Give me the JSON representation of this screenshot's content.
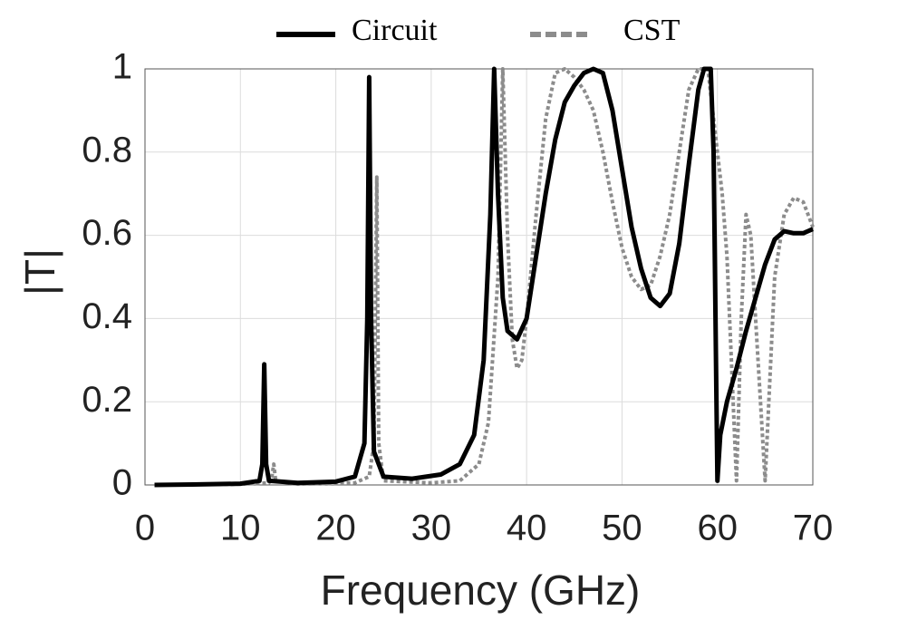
{
  "chart_data": {
    "type": "line",
    "xlabel": "Frequency (GHz)",
    "ylabel": "|T|",
    "xlim": [
      0,
      70
    ],
    "xticks": [
      0,
      10,
      20,
      30,
      40,
      50,
      60,
      70
    ],
    "ylim": [
      0,
      1
    ],
    "yticks": [
      0,
      0.2,
      0.4,
      0.6,
      0.8,
      1
    ],
    "grid": true,
    "legend": "top",
    "series": [
      {
        "name": "Circuit",
        "color": "#000000",
        "dash": "solid",
        "x": [
          1,
          5,
          10,
          12,
          12.3,
          12.5,
          12.7,
          13,
          16,
          20,
          22,
          23,
          23.3,
          23.5,
          23.7,
          24,
          25,
          28,
          31,
          33,
          34.5,
          35.5,
          36.2,
          36.6,
          37,
          37.5,
          38,
          39,
          40,
          41,
          42,
          43,
          44,
          45,
          46,
          47,
          48,
          49,
          50,
          51,
          52,
          53,
          54,
          55,
          56,
          57,
          58,
          58.6,
          59.3,
          59.6,
          59.9,
          60,
          60.3,
          61,
          62,
          63,
          64,
          65,
          66,
          67,
          68,
          69,
          70
        ],
        "values": [
          0,
          0.001,
          0.003,
          0.01,
          0.05,
          0.29,
          0.05,
          0.01,
          0.005,
          0.008,
          0.02,
          0.1,
          0.4,
          0.98,
          0.4,
          0.08,
          0.02,
          0.015,
          0.025,
          0.05,
          0.12,
          0.3,
          0.65,
          1.0,
          0.7,
          0.45,
          0.37,
          0.35,
          0.4,
          0.55,
          0.7,
          0.83,
          0.92,
          0.96,
          0.99,
          1.0,
          0.99,
          0.9,
          0.76,
          0.62,
          0.52,
          0.45,
          0.43,
          0.46,
          0.58,
          0.77,
          0.95,
          1.0,
          1.0,
          0.8,
          0.2,
          0.01,
          0.12,
          0.2,
          0.28,
          0.37,
          0.45,
          0.53,
          0.59,
          0.61,
          0.605,
          0.605,
          0.615
        ]
      },
      {
        "name": "CST",
        "color": "#8c8c8c",
        "dash": "dotted",
        "x": [
          1,
          10,
          13,
          13.3,
          13.5,
          13.7,
          16,
          22,
          23.5,
          24,
          24.3,
          24.5,
          25,
          30,
          33,
          35,
          36,
          37,
          37.5,
          38,
          38.5,
          39,
          39.5,
          40,
          41,
          42,
          43,
          44,
          45,
          46,
          47,
          48,
          49,
          50,
          51,
          52,
          53,
          54,
          55,
          56,
          57,
          58,
          59,
          60,
          60.5,
          61,
          62,
          62.5,
          63,
          63.5,
          64,
          65,
          66,
          67,
          68,
          69,
          70
        ],
        "values": [
          0,
          0.002,
          0.005,
          0.02,
          0.05,
          0.01,
          0.002,
          0.005,
          0.02,
          0.1,
          0.74,
          0.1,
          0.01,
          0.005,
          0.01,
          0.05,
          0.15,
          0.5,
          1.0,
          0.6,
          0.35,
          0.28,
          0.3,
          0.4,
          0.65,
          0.88,
          0.99,
          1.0,
          0.98,
          0.95,
          0.9,
          0.8,
          0.68,
          0.57,
          0.5,
          0.47,
          0.48,
          0.55,
          0.65,
          0.8,
          0.95,
          1.0,
          1.0,
          0.8,
          0.7,
          0.55,
          0.01,
          0.4,
          0.65,
          0.6,
          0.4,
          0.01,
          0.5,
          0.65,
          0.69,
          0.68,
          0.62
        ]
      }
    ]
  }
}
